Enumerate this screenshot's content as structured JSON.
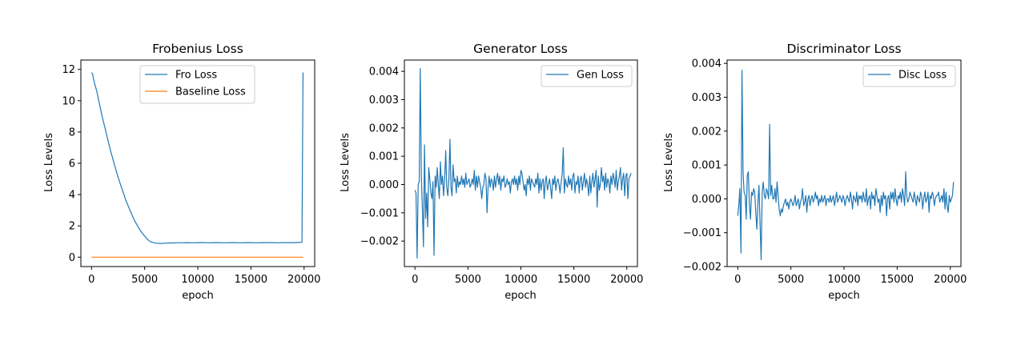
{
  "figure": {
    "background": "#ffffff"
  },
  "chart_data": [
    {
      "type": "line",
      "title": "Frobenius Loss",
      "xlabel": "epoch",
      "ylabel": "Loss Levels",
      "xlim": [
        -1000,
        21000
      ],
      "ylim": [
        -0.6,
        12.6
      ],
      "xticks": [
        0,
        5000,
        10000,
        15000,
        20000
      ],
      "xtick_labels": [
        "0",
        "5000",
        "10000",
        "15000",
        "20000"
      ],
      "yticks": [
        0,
        2,
        4,
        6,
        8,
        10,
        12
      ],
      "ytick_labels": [
        "0",
        "2",
        "4",
        "6",
        "8",
        "10",
        "12"
      ],
      "legend": "upper center",
      "series": [
        {
          "name": "Fro Loss",
          "color": "#1f77b4",
          "x": [
            0,
            100,
            250,
            500,
            750,
            1000,
            1250,
            1500,
            1750,
            2000,
            2250,
            2500,
            2750,
            3000,
            3250,
            3500,
            3750,
            4000,
            4250,
            4500,
            4750,
            5000,
            5250,
            5500,
            6000,
            6500,
            7000,
            7500,
            8000,
            8500,
            9000,
            9500,
            10000,
            10500,
            11000,
            11500,
            12000,
            12500,
            13000,
            13500,
            14000,
            14500,
            15000,
            15500,
            16000,
            16500,
            17000,
            17500,
            18000,
            18500,
            19000,
            19500,
            19800,
            19900
          ],
          "values": [
            11.8,
            11.7,
            11.2,
            10.6,
            9.8,
            9.0,
            8.3,
            7.6,
            6.9,
            6.3,
            5.7,
            5.1,
            4.6,
            4.1,
            3.6,
            3.2,
            2.8,
            2.4,
            2.1,
            1.8,
            1.55,
            1.35,
            1.15,
            1.0,
            0.9,
            0.88,
            0.9,
            0.91,
            0.92,
            0.92,
            0.93,
            0.92,
            0.93,
            0.93,
            0.92,
            0.93,
            0.93,
            0.92,
            0.93,
            0.93,
            0.92,
            0.93,
            0.93,
            0.92,
            0.93,
            0.93,
            0.93,
            0.92,
            0.93,
            0.93,
            0.93,
            0.94,
            0.95,
            11.8
          ]
        },
        {
          "name": "Baseline Loss",
          "color": "#ff7f0e",
          "x": [
            0,
            19900
          ],
          "values": [
            0.0,
            0.0
          ]
        }
      ]
    },
    {
      "type": "line",
      "title": "Generator Loss",
      "xlabel": "epoch",
      "ylabel": "Loss Levels",
      "xlim": [
        -1000,
        21000
      ],
      "ylim": [
        -0.0029,
        0.0044
      ],
      "xticks": [
        0,
        5000,
        10000,
        15000,
        20000
      ],
      "xtick_labels": [
        "0",
        "5000",
        "10000",
        "15000",
        "20000"
      ],
      "yticks": [
        -0.002,
        -0.001,
        0,
        0.001,
        0.002,
        0.003,
        0.004
      ],
      "ytick_labels": [
        "−0.002",
        "−0.001",
        "0.000",
        "0.001",
        "0.002",
        "0.003",
        "0.004"
      ],
      "legend": "upper right",
      "series": [
        {
          "name": "Gen Loss",
          "color": "#1f77b4",
          "x_start": 0,
          "x_step": 100,
          "values": [
            -0.0002,
            -0.0003,
            -0.0026,
            0.0,
            0.0001,
            0.0041,
            0.0003,
            -0.0009,
            -0.0022,
            0.0014,
            -0.0012,
            -0.0003,
            -0.0015,
            0.0006,
            0.0002,
            -0.0003,
            -0.0005,
            0.0001,
            -0.0025,
            0.0003,
            -0.0001,
            0.0006,
            0.0,
            -0.0005,
            0.0008,
            0.0,
            0.0003,
            -0.0004,
            0.0002,
            0.0012,
            -0.0001,
            -0.0004,
            0.0002,
            0.0016,
            -0.0001,
            -0.0004,
            0.0007,
            0.0001,
            0.0002,
            -0.0003,
            0.0003,
            -0.0001,
            0.0001,
            0.0,
            0.0003,
            0.0,
            0.0002,
            -0.0001,
            0.0004,
            0.0,
            0.0001,
            0.0002,
            -0.0001,
            0.0,
            0.0002,
            0.0,
            0.0005,
            -0.0002,
            0.0003,
            -0.0001,
            0.0003,
            0.0001,
            -0.0001,
            -0.0005,
            -0.0001,
            0.0,
            0.0004,
            0.0002,
            -0.001,
            -0.0001,
            0.0003,
            -0.0001,
            0.0002,
            0.0001,
            -0.0002,
            0.0003,
            -0.0001,
            0.0002,
            0.0004,
            0.0,
            0.0003,
            -0.0002,
            0.0002,
            0.0001,
            0.0003,
            -0.0001,
            0.0,
            0.0002,
            0.0,
            0.0001,
            -0.0003,
            0.0001,
            0.0002,
            0.0,
            0.0003,
            0.0,
            0.0002,
            -0.0002,
            0.0003,
            0.0,
            0.0005,
            0.0004,
            0.0001,
            -0.0002,
            0.0,
            -0.0004,
            0.0002,
            0.0,
            0.0003,
            -0.0002,
            0.0002,
            0.0001,
            0.0,
            -0.0001,
            0.0002,
            0.0,
            0.0004,
            -0.0003,
            0.0002,
            -0.0002,
            0.0001,
            0.0002,
            -0.0005,
            0.0001,
            0.0003,
            -0.0002,
            0.0,
            0.0002,
            -0.0001,
            -0.0005,
            0.0002,
            0.0,
            0.0003,
            -0.0002,
            0.0001,
            0.0002,
            0.0,
            -0.0003,
            0.0001,
            0.0004,
            0.0013,
            -0.0003,
            0.0002,
            0.0,
            -0.0001,
            0.0003,
            0.0,
            0.0002,
            -0.0002,
            0.0003,
            0.0004,
            -0.0003,
            0.0001,
            0.0,
            0.0003,
            -0.0003,
            0.0002,
            0.0003,
            -0.0002,
            0.0001,
            0.0004,
            -0.0001,
            0.0002,
            0.0,
            -0.0004,
            0.0003,
            -0.0003,
            0.0001,
            0.0004,
            -0.0001,
            0.0002,
            0.0005,
            -0.0008,
            0.0003,
            -0.0002,
            0.0,
            0.0006,
            0.0001,
            0.0003,
            -0.0002,
            0.0004,
            -0.0001,
            0.0002,
            0.0001,
            -0.0003,
            0.0003,
            0.0,
            0.0004,
            0.0002,
            -0.0001,
            0.0005,
            -0.0002,
            0.0001,
            0.0003,
            0.0006,
            -0.0002,
            0.0002,
            0.0004,
            -0.0004,
            0.0003,
            0.0004,
            -0.0005,
            0.0002,
            0.0003,
            0.0004
          ]
        }
      ]
    },
    {
      "type": "line",
      "title": "Discriminator Loss",
      "xlabel": "epoch",
      "ylabel": "Loss Levels",
      "xlim": [
        -1000,
        21000
      ],
      "ylim": [
        -0.002,
        0.0041
      ],
      "xticks": [
        0,
        5000,
        10000,
        15000,
        20000
      ],
      "xtick_labels": [
        "0",
        "5000",
        "10000",
        "15000",
        "20000"
      ],
      "yticks": [
        -0.002,
        -0.001,
        0,
        0.001,
        0.002,
        0.003,
        0.004
      ],
      "ytick_labels": [
        "−0.002",
        "−0.001",
        "0.000",
        "0.001",
        "0.002",
        "0.003",
        "0.004"
      ],
      "legend": "upper right",
      "series": [
        {
          "name": "Disc Loss",
          "color": "#1f77b4",
          "x_start": 0,
          "x_step": 100,
          "values": [
            -0.0005,
            -0.0002,
            0.0003,
            -0.0016,
            0.0038,
            0.0008,
            0.0002,
            0.0001,
            -0.0006,
            0.0007,
            0.0008,
            -0.0002,
            -0.0006,
            0.0002,
            0.0001,
            0.0003,
            0.0002,
            -0.0004,
            -0.0009,
            -0.0001,
            0.0004,
            -0.0007,
            -0.0018,
            0.0002,
            0.0005,
            0.0001,
            0.0,
            0.0003,
            0.0002,
            0.0,
            0.0022,
            0.0001,
            0.0004,
            0.0,
            0.0,
            0.0003,
            -0.0001,
            0.0005,
            0.0001,
            -0.0003,
            -0.0005,
            -0.0003,
            -0.0004,
            -0.0002,
            -0.0001,
            0.0,
            -0.0002,
            -0.0001,
            -0.0003,
            -0.0001,
            0.0,
            -0.0001,
            -0.0002,
            -0.0001,
            0.0001,
            -0.0002,
            -0.0001,
            0.0,
            -0.0003,
            -0.0001,
            0.0,
            0.0003,
            -0.0002,
            -0.0001,
            0.0001,
            -0.0004,
            0.0,
            0.0001,
            -0.0002,
            0.0,
            0.0001,
            -0.0001,
            0.0,
            0.0002,
            0.0,
            0.0001,
            -0.0002,
            0.0,
            -0.0001,
            0.0001,
            -0.0001,
            0.0,
            0.0001,
            -0.0002,
            0.0,
            0.0,
            -0.0001,
            0.0001,
            -0.0001,
            0.0,
            0.0001,
            -0.0002,
            0.0,
            0.0002,
            -0.0001,
            0.0,
            0.0001,
            0.0,
            -0.0001,
            0.0001,
            0.0,
            -0.0002,
            0.0,
            0.0001,
            0.0,
            -0.0001,
            0.0002,
            0.0,
            -0.0003,
            0.0001,
            0.0,
            -0.0001,
            0.0002,
            -0.0002,
            0.0001,
            0.0,
            0.0001,
            -0.0001,
            0.0002,
            0.0,
            -0.0001,
            0.0003,
            -0.0002,
            0.0,
            0.0001,
            -0.0003,
            0.0002,
            0.0,
            0.0001,
            -0.0002,
            0.0003,
            0.0001,
            -0.0001,
            0.0,
            -0.0004,
            0.0001,
            -0.0002,
            0.0002,
            0.0,
            0.0001,
            -0.0005,
            0.0,
            0.0001,
            -0.0003,
            0.0002,
            0.0,
            0.0002,
            -0.0001,
            0.0003,
            0.0,
            -0.0002,
            0.0001,
            0.0,
            0.0002,
            -0.0001,
            0.0003,
            0.0001,
            -0.0002,
            0.0008,
            0.0001,
            -0.0001,
            0.0,
            0.0002,
            0.0001,
            0.0,
            -0.0001,
            0.0002,
            0.0,
            -0.0002,
            0.0001,
            0.0,
            -0.0001,
            0.0002,
            0.0001,
            -0.0003,
            0.0,
            0.0002,
            -0.0001,
            0.0,
            0.0002,
            -0.0004,
            0.0001,
            0.0,
            0.0002,
            0.0001,
            -0.0002,
            0.0,
            0.0001,
            0.0001,
            0.0002,
            -0.0001,
            0.0,
            0.0001,
            -0.0001,
            0.0003,
            -0.0003,
            0.0002,
            -0.0002,
            -0.0004,
            0.0001,
            -0.0001,
            0.0,
            0.0001,
            0.0005
          ]
        }
      ]
    }
  ]
}
